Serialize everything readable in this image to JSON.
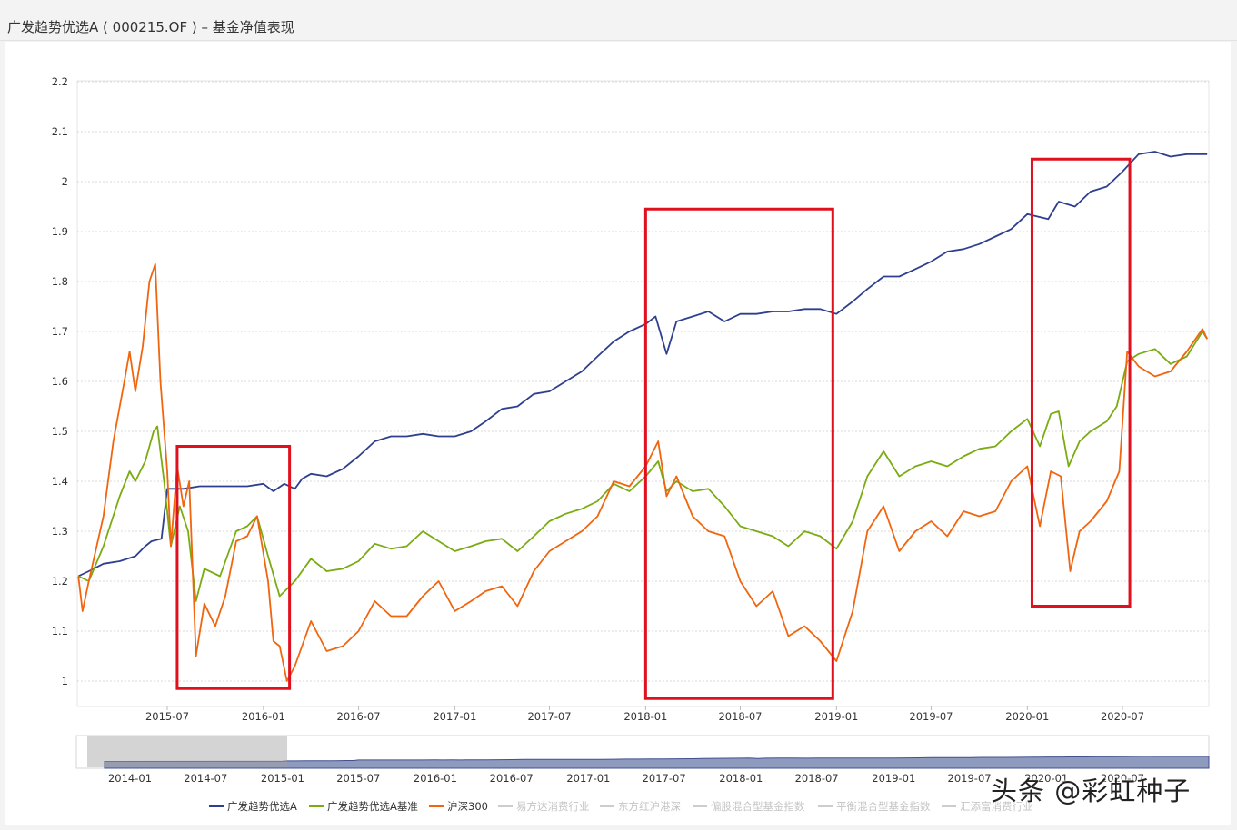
{
  "header": {
    "title": "广发趋势优选A ( 000215.OF ) – 基金净值表现"
  },
  "watermark": "头条 @彩虹种子",
  "colors": {
    "fund": "#2f3f8f",
    "benchmark": "#7aab12",
    "hs300": "#f0650e",
    "highlight_box": "#e0101e",
    "grid": "#d8d8d8",
    "legend_disabled": "#cccccc"
  },
  "chart_data": {
    "type": "line",
    "title": "",
    "xlabel": "",
    "ylabel": "",
    "ylim": [
      0.95,
      2.2
    ],
    "xlim": [
      "2015-01-12",
      "2020-12-15"
    ],
    "y_ticks": [
      "2.2",
      "2.1",
      "2",
      "1.9",
      "1.8",
      "1.7",
      "1.6",
      "1.5",
      "1.4",
      "1.3",
      "1.2",
      "1.1",
      "1"
    ],
    "x_ticks": [
      "2015-07",
      "2016-01",
      "2016-07",
      "2017-01",
      "2017-07",
      "2018-01",
      "2018-07",
      "2019-01",
      "2019-07",
      "2020-01",
      "2020-07"
    ],
    "grid": true,
    "series": [
      {
        "name": "广发趋势优选A",
        "points": [
          [
            "2015-01-12",
            1.21
          ],
          [
            "2015-02-01",
            1.22
          ],
          [
            "2015-03-01",
            1.235
          ],
          [
            "2015-04-01",
            1.24
          ],
          [
            "2015-05-01",
            1.25
          ],
          [
            "2015-05-20",
            1.27
          ],
          [
            "2015-06-01",
            1.28
          ],
          [
            "2015-06-20",
            1.285
          ],
          [
            "2015-07-01",
            1.385
          ],
          [
            "2015-08-01",
            1.385
          ],
          [
            "2015-09-01",
            1.39
          ],
          [
            "2015-10-01",
            1.39
          ],
          [
            "2015-11-01",
            1.39
          ],
          [
            "2015-12-01",
            1.39
          ],
          [
            "2016-01-01",
            1.395
          ],
          [
            "2016-01-20",
            1.38
          ],
          [
            "2016-02-10",
            1.395
          ],
          [
            "2016-03-01",
            1.385
          ],
          [
            "2016-03-15",
            1.405
          ],
          [
            "2016-04-01",
            1.415
          ],
          [
            "2016-05-01",
            1.41
          ],
          [
            "2016-06-01",
            1.425
          ],
          [
            "2016-07-01",
            1.45
          ],
          [
            "2016-08-01",
            1.48
          ],
          [
            "2016-09-01",
            1.49
          ],
          [
            "2016-10-01",
            1.49
          ],
          [
            "2016-11-01",
            1.495
          ],
          [
            "2016-12-01",
            1.49
          ],
          [
            "2017-01-01",
            1.49
          ],
          [
            "2017-02-01",
            1.5
          ],
          [
            "2017-03-01",
            1.52
          ],
          [
            "2017-04-01",
            1.545
          ],
          [
            "2017-05-01",
            1.55
          ],
          [
            "2017-06-01",
            1.575
          ],
          [
            "2017-07-01",
            1.58
          ],
          [
            "2017-08-01",
            1.6
          ],
          [
            "2017-09-01",
            1.62
          ],
          [
            "2017-10-01",
            1.65
          ],
          [
            "2017-11-01",
            1.68
          ],
          [
            "2017-12-01",
            1.7
          ],
          [
            "2018-01-01",
            1.715
          ],
          [
            "2018-01-20",
            1.73
          ],
          [
            "2018-02-10",
            1.655
          ],
          [
            "2018-03-01",
            1.72
          ],
          [
            "2018-04-01",
            1.73
          ],
          [
            "2018-05-01",
            1.74
          ],
          [
            "2018-06-01",
            1.72
          ],
          [
            "2018-07-01",
            1.735
          ],
          [
            "2018-08-01",
            1.735
          ],
          [
            "2018-09-01",
            1.74
          ],
          [
            "2018-10-01",
            1.74
          ],
          [
            "2018-11-01",
            1.745
          ],
          [
            "2018-12-01",
            1.745
          ],
          [
            "2019-01-01",
            1.735
          ],
          [
            "2019-02-01",
            1.76
          ],
          [
            "2019-03-01",
            1.785
          ],
          [
            "2019-04-01",
            1.81
          ],
          [
            "2019-05-01",
            1.81
          ],
          [
            "2019-06-01",
            1.825
          ],
          [
            "2019-07-01",
            1.84
          ],
          [
            "2019-08-01",
            1.86
          ],
          [
            "2019-09-01",
            1.865
          ],
          [
            "2019-10-01",
            1.875
          ],
          [
            "2019-11-01",
            1.89
          ],
          [
            "2019-12-01",
            1.905
          ],
          [
            "2020-01-01",
            1.935
          ],
          [
            "2020-02-10",
            1.925
          ],
          [
            "2020-03-01",
            1.96
          ],
          [
            "2020-04-01",
            1.95
          ],
          [
            "2020-05-01",
            1.98
          ],
          [
            "2020-06-01",
            1.99
          ],
          [
            "2020-07-01",
            2.02
          ],
          [
            "2020-08-01",
            2.055
          ],
          [
            "2020-09-01",
            2.06
          ],
          [
            "2020-10-01",
            2.05
          ],
          [
            "2020-11-01",
            2.055
          ],
          [
            "2020-12-10",
            2.055
          ]
        ]
      },
      {
        "name": "广发趋势优选A基准",
        "points": [
          [
            "2015-01-12",
            1.21
          ],
          [
            "2015-02-01",
            1.2
          ],
          [
            "2015-03-01",
            1.27
          ],
          [
            "2015-04-01",
            1.37
          ],
          [
            "2015-04-20",
            1.42
          ],
          [
            "2015-05-01",
            1.4
          ],
          [
            "2015-05-20",
            1.44
          ],
          [
            "2015-06-05",
            1.5
          ],
          [
            "2015-06-12",
            1.51
          ],
          [
            "2015-06-25",
            1.4
          ],
          [
            "2015-07-08",
            1.27
          ],
          [
            "2015-07-25",
            1.35
          ],
          [
            "2015-08-10",
            1.3
          ],
          [
            "2015-08-25",
            1.16
          ],
          [
            "2015-09-10",
            1.225
          ],
          [
            "2015-10-10",
            1.21
          ],
          [
            "2015-11-10",
            1.3
          ],
          [
            "2015-12-01",
            1.31
          ],
          [
            "2015-12-20",
            1.33
          ],
          [
            "2016-01-10",
            1.25
          ],
          [
            "2016-02-01",
            1.17
          ],
          [
            "2016-03-01",
            1.2
          ],
          [
            "2016-04-01",
            1.245
          ],
          [
            "2016-05-01",
            1.22
          ],
          [
            "2016-06-01",
            1.225
          ],
          [
            "2016-07-01",
            1.24
          ],
          [
            "2016-08-01",
            1.275
          ],
          [
            "2016-09-01",
            1.265
          ],
          [
            "2016-10-01",
            1.27
          ],
          [
            "2016-11-01",
            1.3
          ],
          [
            "2016-12-01",
            1.28
          ],
          [
            "2017-01-01",
            1.26
          ],
          [
            "2017-02-01",
            1.27
          ],
          [
            "2017-03-01",
            1.28
          ],
          [
            "2017-04-01",
            1.285
          ],
          [
            "2017-05-01",
            1.26
          ],
          [
            "2017-06-01",
            1.29
          ],
          [
            "2017-07-01",
            1.32
          ],
          [
            "2017-08-01",
            1.335
          ],
          [
            "2017-09-01",
            1.345
          ],
          [
            "2017-10-01",
            1.36
          ],
          [
            "2017-11-01",
            1.395
          ],
          [
            "2017-12-01",
            1.38
          ],
          [
            "2018-01-01",
            1.41
          ],
          [
            "2018-01-25",
            1.44
          ],
          [
            "2018-02-10",
            1.38
          ],
          [
            "2018-03-01",
            1.4
          ],
          [
            "2018-04-01",
            1.38
          ],
          [
            "2018-05-01",
            1.385
          ],
          [
            "2018-06-01",
            1.35
          ],
          [
            "2018-07-01",
            1.31
          ],
          [
            "2018-08-01",
            1.3
          ],
          [
            "2018-09-01",
            1.29
          ],
          [
            "2018-10-01",
            1.27
          ],
          [
            "2018-11-01",
            1.3
          ],
          [
            "2018-12-01",
            1.29
          ],
          [
            "2019-01-01",
            1.265
          ],
          [
            "2019-02-01",
            1.32
          ],
          [
            "2019-03-01",
            1.41
          ],
          [
            "2019-04-01",
            1.46
          ],
          [
            "2019-05-01",
            1.41
          ],
          [
            "2019-06-01",
            1.43
          ],
          [
            "2019-07-01",
            1.44
          ],
          [
            "2019-08-01",
            1.43
          ],
          [
            "2019-09-01",
            1.45
          ],
          [
            "2019-10-01",
            1.465
          ],
          [
            "2019-11-01",
            1.47
          ],
          [
            "2019-12-01",
            1.5
          ],
          [
            "2020-01-01",
            1.525
          ],
          [
            "2020-01-25",
            1.47
          ],
          [
            "2020-02-15",
            1.535
          ],
          [
            "2020-03-01",
            1.54
          ],
          [
            "2020-03-20",
            1.43
          ],
          [
            "2020-04-10",
            1.48
          ],
          [
            "2020-05-01",
            1.5
          ],
          [
            "2020-06-01",
            1.52
          ],
          [
            "2020-06-20",
            1.55
          ],
          [
            "2020-07-10",
            1.64
          ],
          [
            "2020-08-01",
            1.655
          ],
          [
            "2020-09-01",
            1.665
          ],
          [
            "2020-10-01",
            1.635
          ],
          [
            "2020-11-01",
            1.65
          ],
          [
            "2020-12-01",
            1.7
          ],
          [
            "2020-12-10",
            1.685
          ]
        ]
      },
      {
        "name": "沪深300",
        "points": [
          [
            "2015-01-12",
            1.21
          ],
          [
            "2015-01-20",
            1.14
          ],
          [
            "2015-02-01",
            1.2
          ],
          [
            "2015-03-01",
            1.33
          ],
          [
            "2015-03-20",
            1.48
          ],
          [
            "2015-04-10",
            1.6
          ],
          [
            "2015-04-20",
            1.66
          ],
          [
            "2015-05-01",
            1.58
          ],
          [
            "2015-05-15",
            1.67
          ],
          [
            "2015-05-28",
            1.8
          ],
          [
            "2015-06-08",
            1.835
          ],
          [
            "2015-06-18",
            1.6
          ],
          [
            "2015-07-01",
            1.42
          ],
          [
            "2015-07-08",
            1.27
          ],
          [
            "2015-07-20",
            1.43
          ],
          [
            "2015-08-01",
            1.35
          ],
          [
            "2015-08-12",
            1.4
          ],
          [
            "2015-08-25",
            1.05
          ],
          [
            "2015-09-10",
            1.155
          ],
          [
            "2015-10-01",
            1.11
          ],
          [
            "2015-10-20",
            1.17
          ],
          [
            "2015-11-10",
            1.28
          ],
          [
            "2015-12-01",
            1.29
          ],
          [
            "2015-12-20",
            1.33
          ],
          [
            "2016-01-10",
            1.2
          ],
          [
            "2016-01-20",
            1.08
          ],
          [
            "2016-02-01",
            1.07
          ],
          [
            "2016-02-15",
            1.0
          ],
          [
            "2016-03-01",
            1.03
          ],
          [
            "2016-04-01",
            1.12
          ],
          [
            "2016-05-01",
            1.06
          ],
          [
            "2016-06-01",
            1.07
          ],
          [
            "2016-07-01",
            1.1
          ],
          [
            "2016-08-01",
            1.16
          ],
          [
            "2016-09-01",
            1.13
          ],
          [
            "2016-10-01",
            1.13
          ],
          [
            "2016-11-01",
            1.17
          ],
          [
            "2016-12-01",
            1.2
          ],
          [
            "2017-01-01",
            1.14
          ],
          [
            "2017-02-01",
            1.16
          ],
          [
            "2017-03-01",
            1.18
          ],
          [
            "2017-04-01",
            1.19
          ],
          [
            "2017-05-01",
            1.15
          ],
          [
            "2017-06-01",
            1.22
          ],
          [
            "2017-07-01",
            1.26
          ],
          [
            "2017-08-01",
            1.28
          ],
          [
            "2017-09-01",
            1.3
          ],
          [
            "2017-10-01",
            1.33
          ],
          [
            "2017-11-01",
            1.4
          ],
          [
            "2017-12-01",
            1.39
          ],
          [
            "2018-01-01",
            1.43
          ],
          [
            "2018-01-25",
            1.48
          ],
          [
            "2018-02-10",
            1.37
          ],
          [
            "2018-03-01",
            1.41
          ],
          [
            "2018-04-01",
            1.33
          ],
          [
            "2018-05-01",
            1.3
          ],
          [
            "2018-06-01",
            1.29
          ],
          [
            "2018-07-01",
            1.2
          ],
          [
            "2018-08-01",
            1.15
          ],
          [
            "2018-09-01",
            1.18
          ],
          [
            "2018-10-01",
            1.09
          ],
          [
            "2018-11-01",
            1.11
          ],
          [
            "2018-12-01",
            1.08
          ],
          [
            "2019-01-01",
            1.04
          ],
          [
            "2019-02-01",
            1.14
          ],
          [
            "2019-03-01",
            1.3
          ],
          [
            "2019-04-01",
            1.35
          ],
          [
            "2019-05-01",
            1.26
          ],
          [
            "2019-06-01",
            1.3
          ],
          [
            "2019-07-01",
            1.32
          ],
          [
            "2019-08-01",
            1.29
          ],
          [
            "2019-09-01",
            1.34
          ],
          [
            "2019-10-01",
            1.33
          ],
          [
            "2019-11-01",
            1.34
          ],
          [
            "2019-12-01",
            1.4
          ],
          [
            "2020-01-01",
            1.43
          ],
          [
            "2020-01-25",
            1.31
          ],
          [
            "2020-02-15",
            1.42
          ],
          [
            "2020-03-05",
            1.41
          ],
          [
            "2020-03-23",
            1.22
          ],
          [
            "2020-04-10",
            1.3
          ],
          [
            "2020-05-01",
            1.32
          ],
          [
            "2020-06-01",
            1.36
          ],
          [
            "2020-06-25",
            1.42
          ],
          [
            "2020-07-10",
            1.66
          ],
          [
            "2020-08-01",
            1.63
          ],
          [
            "2020-09-01",
            1.61
          ],
          [
            "2020-10-01",
            1.62
          ],
          [
            "2020-11-01",
            1.66
          ],
          [
            "2020-12-01",
            1.705
          ],
          [
            "2020-12-10",
            1.685
          ]
        ]
      }
    ],
    "highlight_boxes": [
      {
        "from": "2015-07-20",
        "to": "2016-02-20",
        "ymin": 0.985,
        "ymax": 1.47
      },
      {
        "from": "2018-01-01",
        "to": "2018-12-25",
        "ymin": 0.965,
        "ymax": 1.945
      },
      {
        "from": "2020-01-10",
        "to": "2020-07-15",
        "ymin": 1.15,
        "ymax": 2.045
      }
    ],
    "legend": {
      "placement": "bottom",
      "items": [
        {
          "name": "广发趋势优选A",
          "active": true,
          "series": 0
        },
        {
          "name": "广发趋势优选A基准",
          "active": true,
          "series": 1
        },
        {
          "name": "沪深300",
          "active": true,
          "series": 2
        },
        {
          "name": "易方达消费行业",
          "active": false
        },
        {
          "name": "东方红沪港深",
          "active": false
        },
        {
          "name": "偏股混合型基金指数",
          "active": false
        },
        {
          "name": "平衡混合型基金指数",
          "active": false
        },
        {
          "name": "汇添富消费行业",
          "active": false
        }
      ]
    },
    "navigator": {
      "x_ticks": [
        "2014-01",
        "2014-07",
        "2015-01",
        "2015-07",
        "2016-01",
        "2016-07",
        "2017-01",
        "2017-07",
        "2018-01",
        "2018-07",
        "2019-01",
        "2019-07",
        "2020-01",
        "2020-07"
      ],
      "selected_start": "2015-01-12",
      "selected_end": "2020-12-15"
    }
  }
}
